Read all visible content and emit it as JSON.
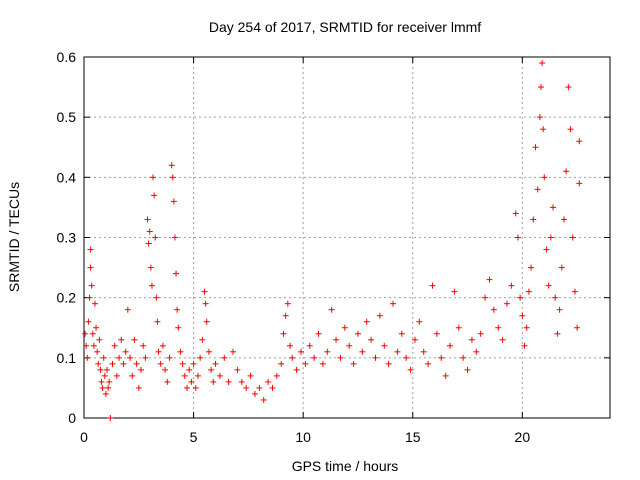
{
  "chart_data": {
    "type": "scatter",
    "title": "Day 254 of 2017, SRMTID for receiver lmmf",
    "xlabel": "GPS time / hours",
    "ylabel": "SRMTID / TECUs",
    "xlim": [
      0,
      24
    ],
    "ylim": [
      0,
      0.6
    ],
    "x_ticks": [
      0,
      5,
      10,
      15,
      20
    ],
    "y_ticks": [
      0,
      0.1,
      0.2,
      0.3,
      0.4,
      0.5,
      0.6
    ],
    "x_tick_labels": [
      "0",
      "5",
      "10",
      "15",
      "20"
    ],
    "y_tick_labels": [
      "0",
      "0.1",
      "0.2",
      "0.3",
      "0.4",
      "0.5",
      "0.6"
    ],
    "grid": true,
    "marker": "+",
    "marker_color": "#ff0000",
    "series": [
      {
        "name": "SRMTID",
        "points": [
          [
            0.05,
            0.14
          ],
          [
            0.1,
            0.12
          ],
          [
            0.15,
            0.1
          ],
          [
            0.2,
            0.16
          ],
          [
            0.25,
            0.2
          ],
          [
            0.3,
            0.28
          ],
          [
            0.3,
            0.25
          ],
          [
            0.35,
            0.22
          ],
          [
            0.4,
            0.14
          ],
          [
            0.45,
            0.12
          ],
          [
            0.5,
            0.19
          ],
          [
            0.55,
            0.15
          ],
          [
            0.6,
            0.11
          ],
          [
            0.65,
            0.09
          ],
          [
            0.7,
            0.13
          ],
          [
            0.75,
            0.08
          ],
          [
            0.8,
            0.06
          ],
          [
            0.85,
            0.05
          ],
          [
            0.9,
            0.1
          ],
          [
            0.95,
            0.07
          ],
          [
            1.0,
            0.04
          ],
          [
            1.05,
            0.08
          ],
          [
            1.1,
            0.05
          ],
          [
            1.15,
            0.06
          ],
          [
            1.2,
            0.0
          ],
          [
            1.3,
            0.09
          ],
          [
            1.4,
            0.12
          ],
          [
            1.5,
            0.07
          ],
          [
            1.6,
            0.1
          ],
          [
            1.7,
            0.13
          ],
          [
            1.8,
            0.09
          ],
          [
            1.9,
            0.11
          ],
          [
            2.0,
            0.18
          ],
          [
            2.1,
            0.1
          ],
          [
            2.2,
            0.07
          ],
          [
            2.3,
            0.13
          ],
          [
            2.4,
            0.09
          ],
          [
            2.5,
            0.05
          ],
          [
            2.6,
            0.08
          ],
          [
            2.7,
            0.12
          ],
          [
            2.8,
            0.1
          ],
          [
            2.9,
            0.33
          ],
          [
            2.95,
            0.29
          ],
          [
            3.0,
            0.31
          ],
          [
            3.05,
            0.25
          ],
          [
            3.1,
            0.22
          ],
          [
            3.15,
            0.4
          ],
          [
            3.2,
            0.37
          ],
          [
            3.25,
            0.3
          ],
          [
            3.3,
            0.2
          ],
          [
            3.35,
            0.16
          ],
          [
            3.4,
            0.11
          ],
          [
            3.5,
            0.09
          ],
          [
            3.6,
            0.12
          ],
          [
            3.7,
            0.08
          ],
          [
            3.8,
            0.06
          ],
          [
            3.9,
            0.1
          ],
          [
            4.0,
            0.42
          ],
          [
            4.05,
            0.4
          ],
          [
            4.1,
            0.36
          ],
          [
            4.15,
            0.3
          ],
          [
            4.2,
            0.24
          ],
          [
            4.25,
            0.18
          ],
          [
            4.3,
            0.15
          ],
          [
            4.4,
            0.11
          ],
          [
            4.5,
            0.09
          ],
          [
            4.6,
            0.07
          ],
          [
            4.7,
            0.05
          ],
          [
            4.8,
            0.08
          ],
          [
            4.9,
            0.06
          ],
          [
            5.0,
            0.09
          ],
          [
            5.1,
            0.05
          ],
          [
            5.2,
            0.07
          ],
          [
            5.3,
            0.1
          ],
          [
            5.4,
            0.13
          ],
          [
            5.5,
            0.21
          ],
          [
            5.55,
            0.19
          ],
          [
            5.6,
            0.16
          ],
          [
            5.7,
            0.11
          ],
          [
            5.8,
            0.08
          ],
          [
            5.9,
            0.06
          ],
          [
            6.0,
            0.09
          ],
          [
            6.2,
            0.07
          ],
          [
            6.4,
            0.1
          ],
          [
            6.6,
            0.06
          ],
          [
            6.8,
            0.11
          ],
          [
            7.0,
            0.08
          ],
          [
            7.2,
            0.06
          ],
          [
            7.4,
            0.05
          ],
          [
            7.6,
            0.07
          ],
          [
            7.8,
            0.04
          ],
          [
            8.0,
            0.05
          ],
          [
            8.2,
            0.03
          ],
          [
            8.4,
            0.06
          ],
          [
            8.6,
            0.05
          ],
          [
            8.8,
            0.07
          ],
          [
            9.0,
            0.09
          ],
          [
            9.1,
            0.14
          ],
          [
            9.2,
            0.17
          ],
          [
            9.3,
            0.19
          ],
          [
            9.4,
            0.12
          ],
          [
            9.5,
            0.1
          ],
          [
            9.7,
            0.08
          ],
          [
            9.9,
            0.11
          ],
          [
            10.1,
            0.09
          ],
          [
            10.3,
            0.12
          ],
          [
            10.5,
            0.1
          ],
          [
            10.7,
            0.14
          ],
          [
            10.9,
            0.09
          ],
          [
            11.1,
            0.11
          ],
          [
            11.3,
            0.18
          ],
          [
            11.5,
            0.13
          ],
          [
            11.7,
            0.1
          ],
          [
            11.9,
            0.15
          ],
          [
            12.1,
            0.12
          ],
          [
            12.3,
            0.09
          ],
          [
            12.5,
            0.14
          ],
          [
            12.7,
            0.11
          ],
          [
            12.9,
            0.16
          ],
          [
            13.1,
            0.13
          ],
          [
            13.3,
            0.1
          ],
          [
            13.5,
            0.17
          ],
          [
            13.7,
            0.12
          ],
          [
            13.9,
            0.09
          ],
          [
            14.1,
            0.19
          ],
          [
            14.3,
            0.11
          ],
          [
            14.5,
            0.14
          ],
          [
            14.7,
            0.1
          ],
          [
            14.9,
            0.08
          ],
          [
            15.1,
            0.13
          ],
          [
            15.3,
            0.16
          ],
          [
            15.5,
            0.11
          ],
          [
            15.7,
            0.09
          ],
          [
            15.9,
            0.22
          ],
          [
            16.1,
            0.14
          ],
          [
            16.3,
            0.1
          ],
          [
            16.5,
            0.07
          ],
          [
            16.7,
            0.12
          ],
          [
            16.9,
            0.21
          ],
          [
            17.1,
            0.15
          ],
          [
            17.3,
            0.1
          ],
          [
            17.5,
            0.08
          ],
          [
            17.7,
            0.13
          ],
          [
            17.9,
            0.11
          ],
          [
            18.1,
            0.14
          ],
          [
            18.3,
            0.2
          ],
          [
            18.5,
            0.23
          ],
          [
            18.7,
            0.18
          ],
          [
            18.9,
            0.15
          ],
          [
            19.1,
            0.13
          ],
          [
            19.3,
            0.19
          ],
          [
            19.5,
            0.22
          ],
          [
            19.7,
            0.34
          ],
          [
            19.8,
            0.3
          ],
          [
            19.9,
            0.2
          ],
          [
            20.0,
            0.17
          ],
          [
            20.1,
            0.12
          ],
          [
            20.2,
            0.15
          ],
          [
            20.3,
            0.21
          ],
          [
            20.4,
            0.25
          ],
          [
            20.5,
            0.33
          ],
          [
            20.6,
            0.45
          ],
          [
            20.7,
            0.38
          ],
          [
            20.8,
            0.5
          ],
          [
            20.85,
            0.55
          ],
          [
            20.9,
            0.59
          ],
          [
            20.95,
            0.48
          ],
          [
            21.0,
            0.4
          ],
          [
            21.1,
            0.28
          ],
          [
            21.2,
            0.22
          ],
          [
            21.3,
            0.3
          ],
          [
            21.4,
            0.35
          ],
          [
            21.5,
            0.2
          ],
          [
            21.6,
            0.14
          ],
          [
            21.7,
            0.18
          ],
          [
            21.8,
            0.25
          ],
          [
            21.9,
            0.33
          ],
          [
            22.0,
            0.41
          ],
          [
            22.1,
            0.55
          ],
          [
            22.2,
            0.48
          ],
          [
            22.3,
            0.3
          ],
          [
            22.4,
            0.21
          ],
          [
            22.5,
            0.15
          ],
          [
            22.6,
            0.46
          ],
          [
            22.6,
            0.39
          ]
        ]
      }
    ]
  }
}
